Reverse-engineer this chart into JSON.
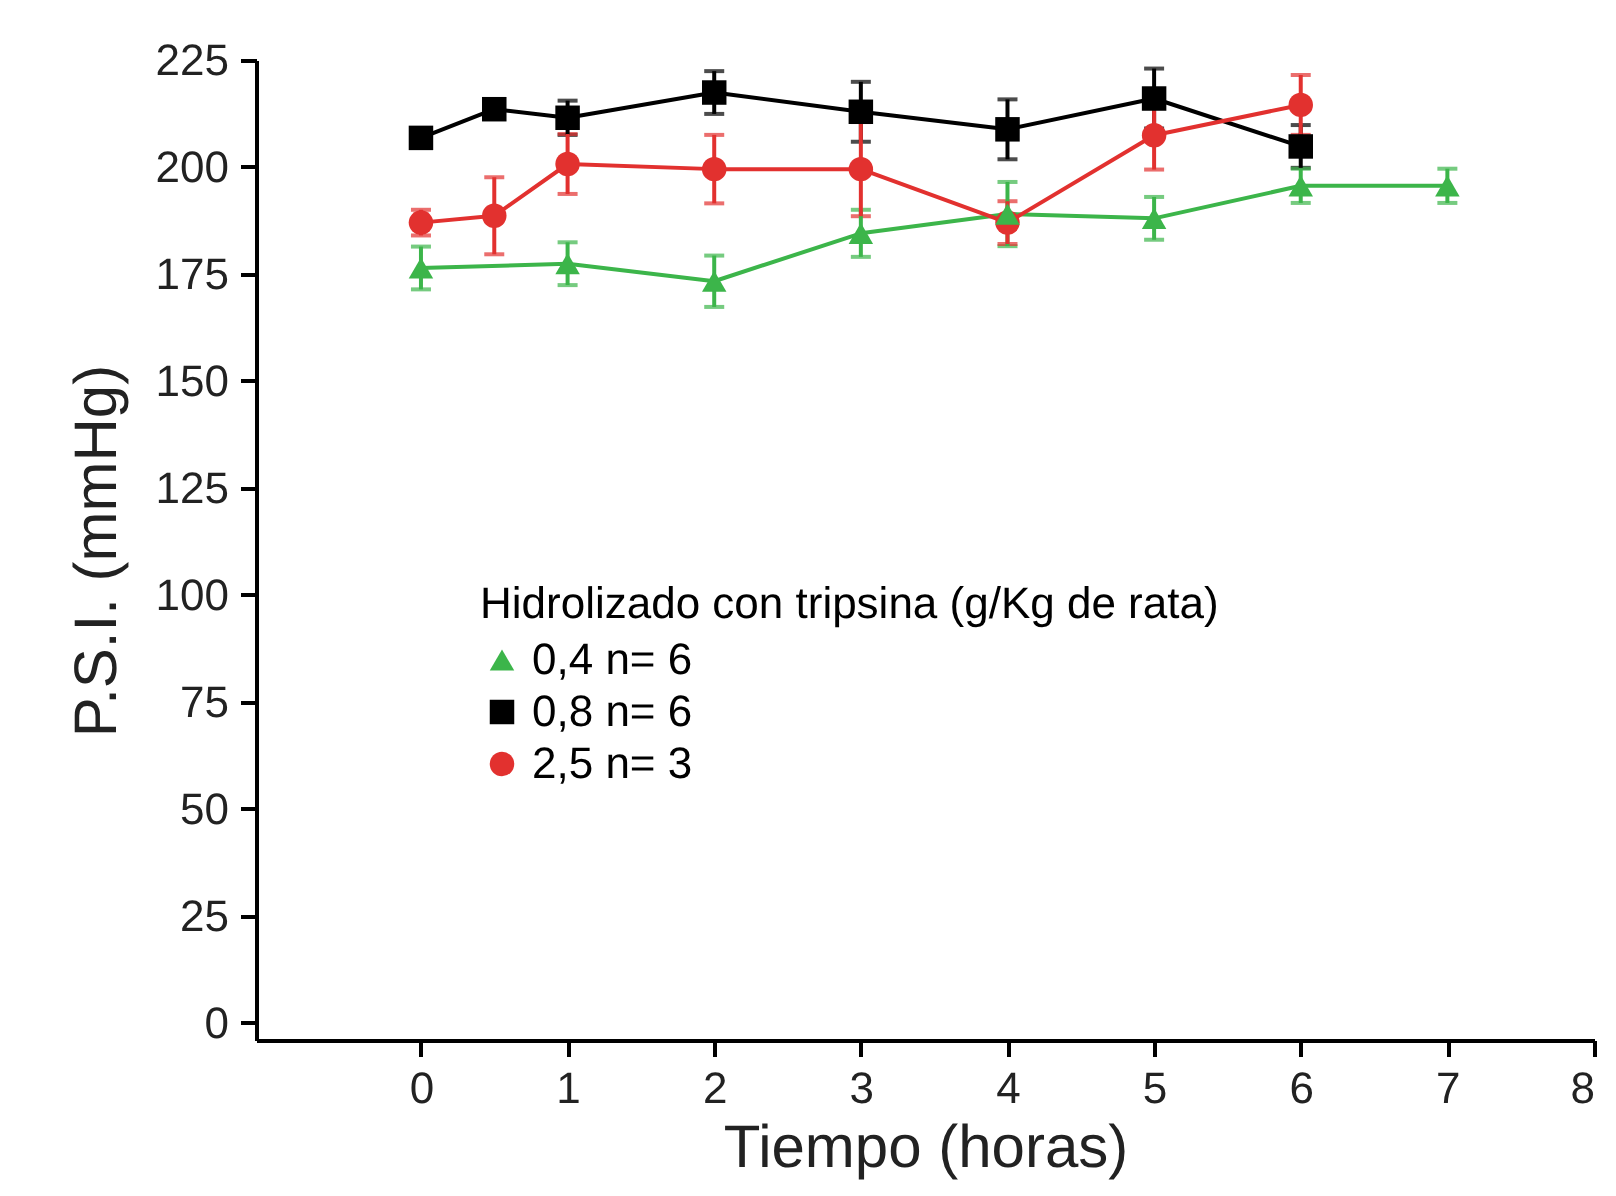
{
  "chart_data": {
    "type": "line",
    "xlabel": "Tiempo (horas)",
    "ylabel": "P.S.I. (mmHg)",
    "legend_title": "Hidrolizado con tripsina (g/Kg de rata)",
    "legend": "center",
    "grid": false,
    "xlim": [
      -1.125,
      8
    ],
    "xticks": [
      0,
      1,
      2,
      3,
      4,
      5,
      6,
      7,
      8
    ],
    "ylim": [
      -4,
      225
    ],
    "yticks": [
      0,
      25,
      50,
      75,
      100,
      125,
      150,
      175,
      200,
      225
    ],
    "series": [
      {
        "name": "0,4 n= 6",
        "color": "#3cb54a",
        "marker": "triangle",
        "x": [
          0,
          1,
          2,
          3,
          4,
          5,
          6,
          7
        ],
        "values": [
          176.4,
          177.4,
          173.3,
          184.5,
          189,
          188,
          195.6,
          195.6
        ],
        "errors": [
          5,
          5,
          6,
          5.5,
          7.5,
          5,
          4,
          4
        ]
      },
      {
        "name": "0,8 n= 6",
        "color": "#000000",
        "marker": "square",
        "x": [
          0,
          0.5,
          1,
          2,
          3,
          4,
          5,
          6
        ],
        "values": [
          206.8,
          213.5,
          211.5,
          217.4,
          212.9,
          208.8,
          216,
          204.8
        ],
        "errors": [
          null,
          null,
          4,
          5,
          7,
          7,
          7,
          5
        ]
      },
      {
        "name": "2,5 n= 3",
        "color": "#e2312f",
        "marker": "circle",
        "x": [
          0,
          0.5,
          1,
          2,
          3,
          4,
          5,
          6
        ],
        "values": [
          187,
          188.6,
          200.7,
          199.5,
          199.5,
          187,
          207.4,
          214.5
        ],
        "errors": [
          3,
          9,
          7,
          8,
          11,
          5,
          8,
          7
        ]
      }
    ]
  }
}
